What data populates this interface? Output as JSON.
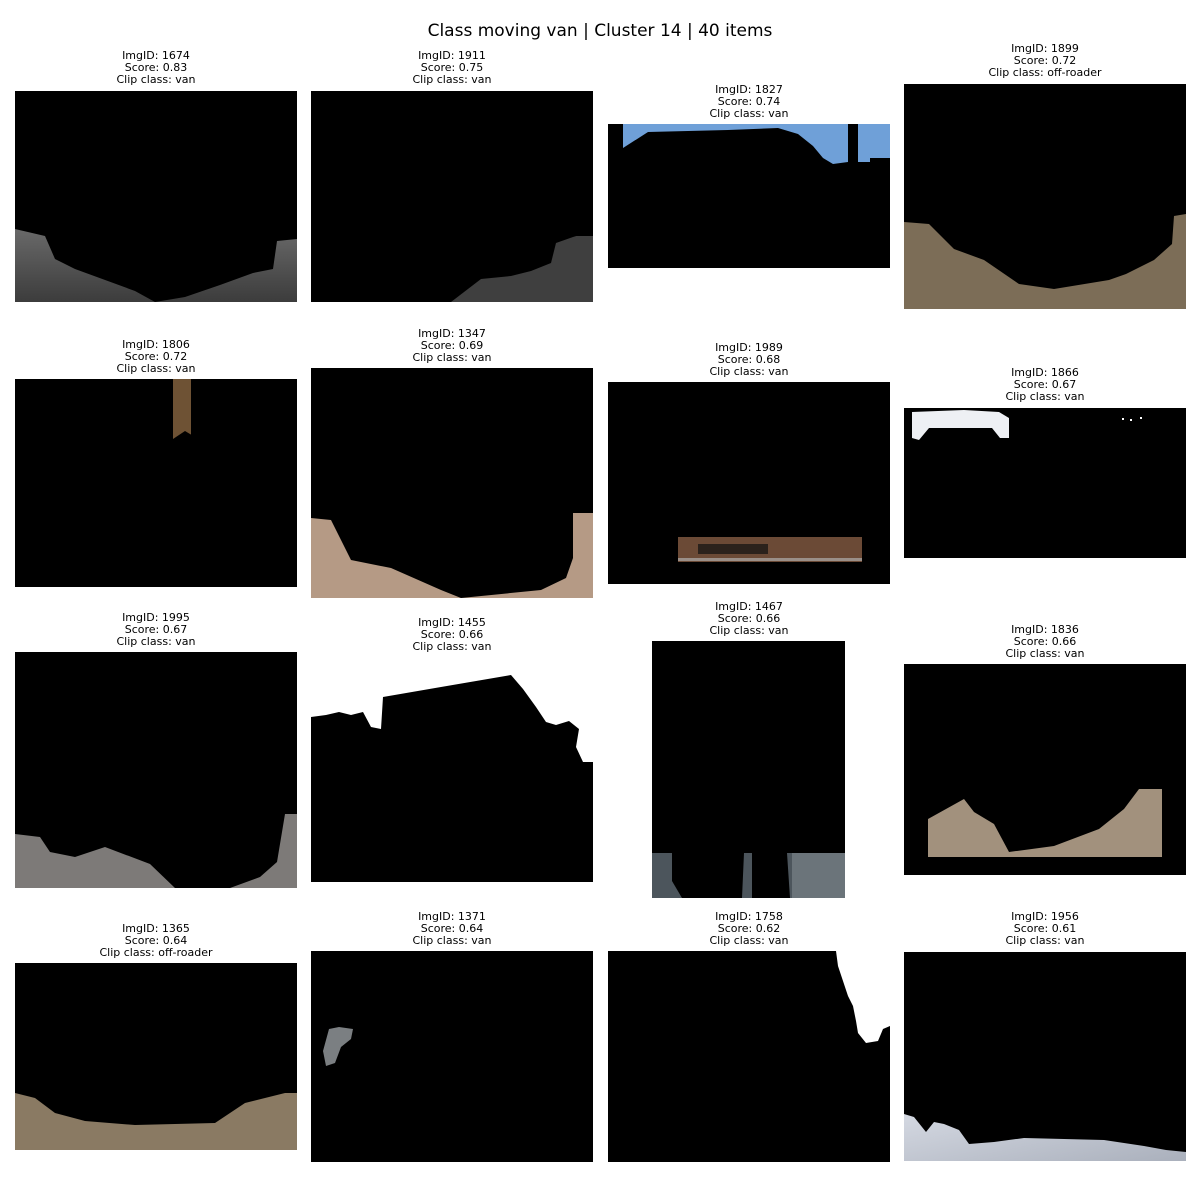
{
  "title": "Class moving van | Cluster 14 | 40 items",
  "items": [
    {
      "img_id": "ImgID: 1674",
      "score": "Score: 0.83",
      "clip_class": "Clip class: van"
    },
    {
      "img_id": "ImgID: 1911",
      "score": "Score: 0.75",
      "clip_class": "Clip class: van"
    },
    {
      "img_id": "ImgID: 1827",
      "score": "Score: 0.74",
      "clip_class": "Clip class: van"
    },
    {
      "img_id": "ImgID: 1899",
      "score": "Score: 0.72",
      "clip_class": "Clip class: off-roader"
    },
    {
      "img_id": "ImgID: 1806",
      "score": "Score: 0.72",
      "clip_class": "Clip class: van"
    },
    {
      "img_id": "ImgID: 1347",
      "score": "Score: 0.69",
      "clip_class": "Clip class: van"
    },
    {
      "img_id": "ImgID: 1989",
      "score": "Score: 0.68",
      "clip_class": "Clip class: van"
    },
    {
      "img_id": "ImgID: 1866",
      "score": "Score: 0.67",
      "clip_class": "Clip class: van"
    },
    {
      "img_id": "ImgID: 1995",
      "score": "Score: 0.67",
      "clip_class": "Clip class: van"
    },
    {
      "img_id": "ImgID: 1455",
      "score": "Score: 0.66",
      "clip_class": "Clip class: van"
    },
    {
      "img_id": "ImgID: 1467",
      "score": "Score: 0.66",
      "clip_class": "Clip class: van"
    },
    {
      "img_id": "ImgID: 1836",
      "score": "Score: 0.66",
      "clip_class": "Clip class: van"
    },
    {
      "img_id": "ImgID: 1365",
      "score": "Score: 0.64",
      "clip_class": "Clip class: off-roader"
    },
    {
      "img_id": "ImgID: 1371",
      "score": "Score: 0.64",
      "clip_class": "Clip class: van"
    },
    {
      "img_id": "ImgID: 1758",
      "score": "Score: 0.62",
      "clip_class": "Clip class: van"
    },
    {
      "img_id": "ImgID: 1956",
      "score": "Score: 0.61",
      "clip_class": "Clip class: van"
    }
  ]
}
